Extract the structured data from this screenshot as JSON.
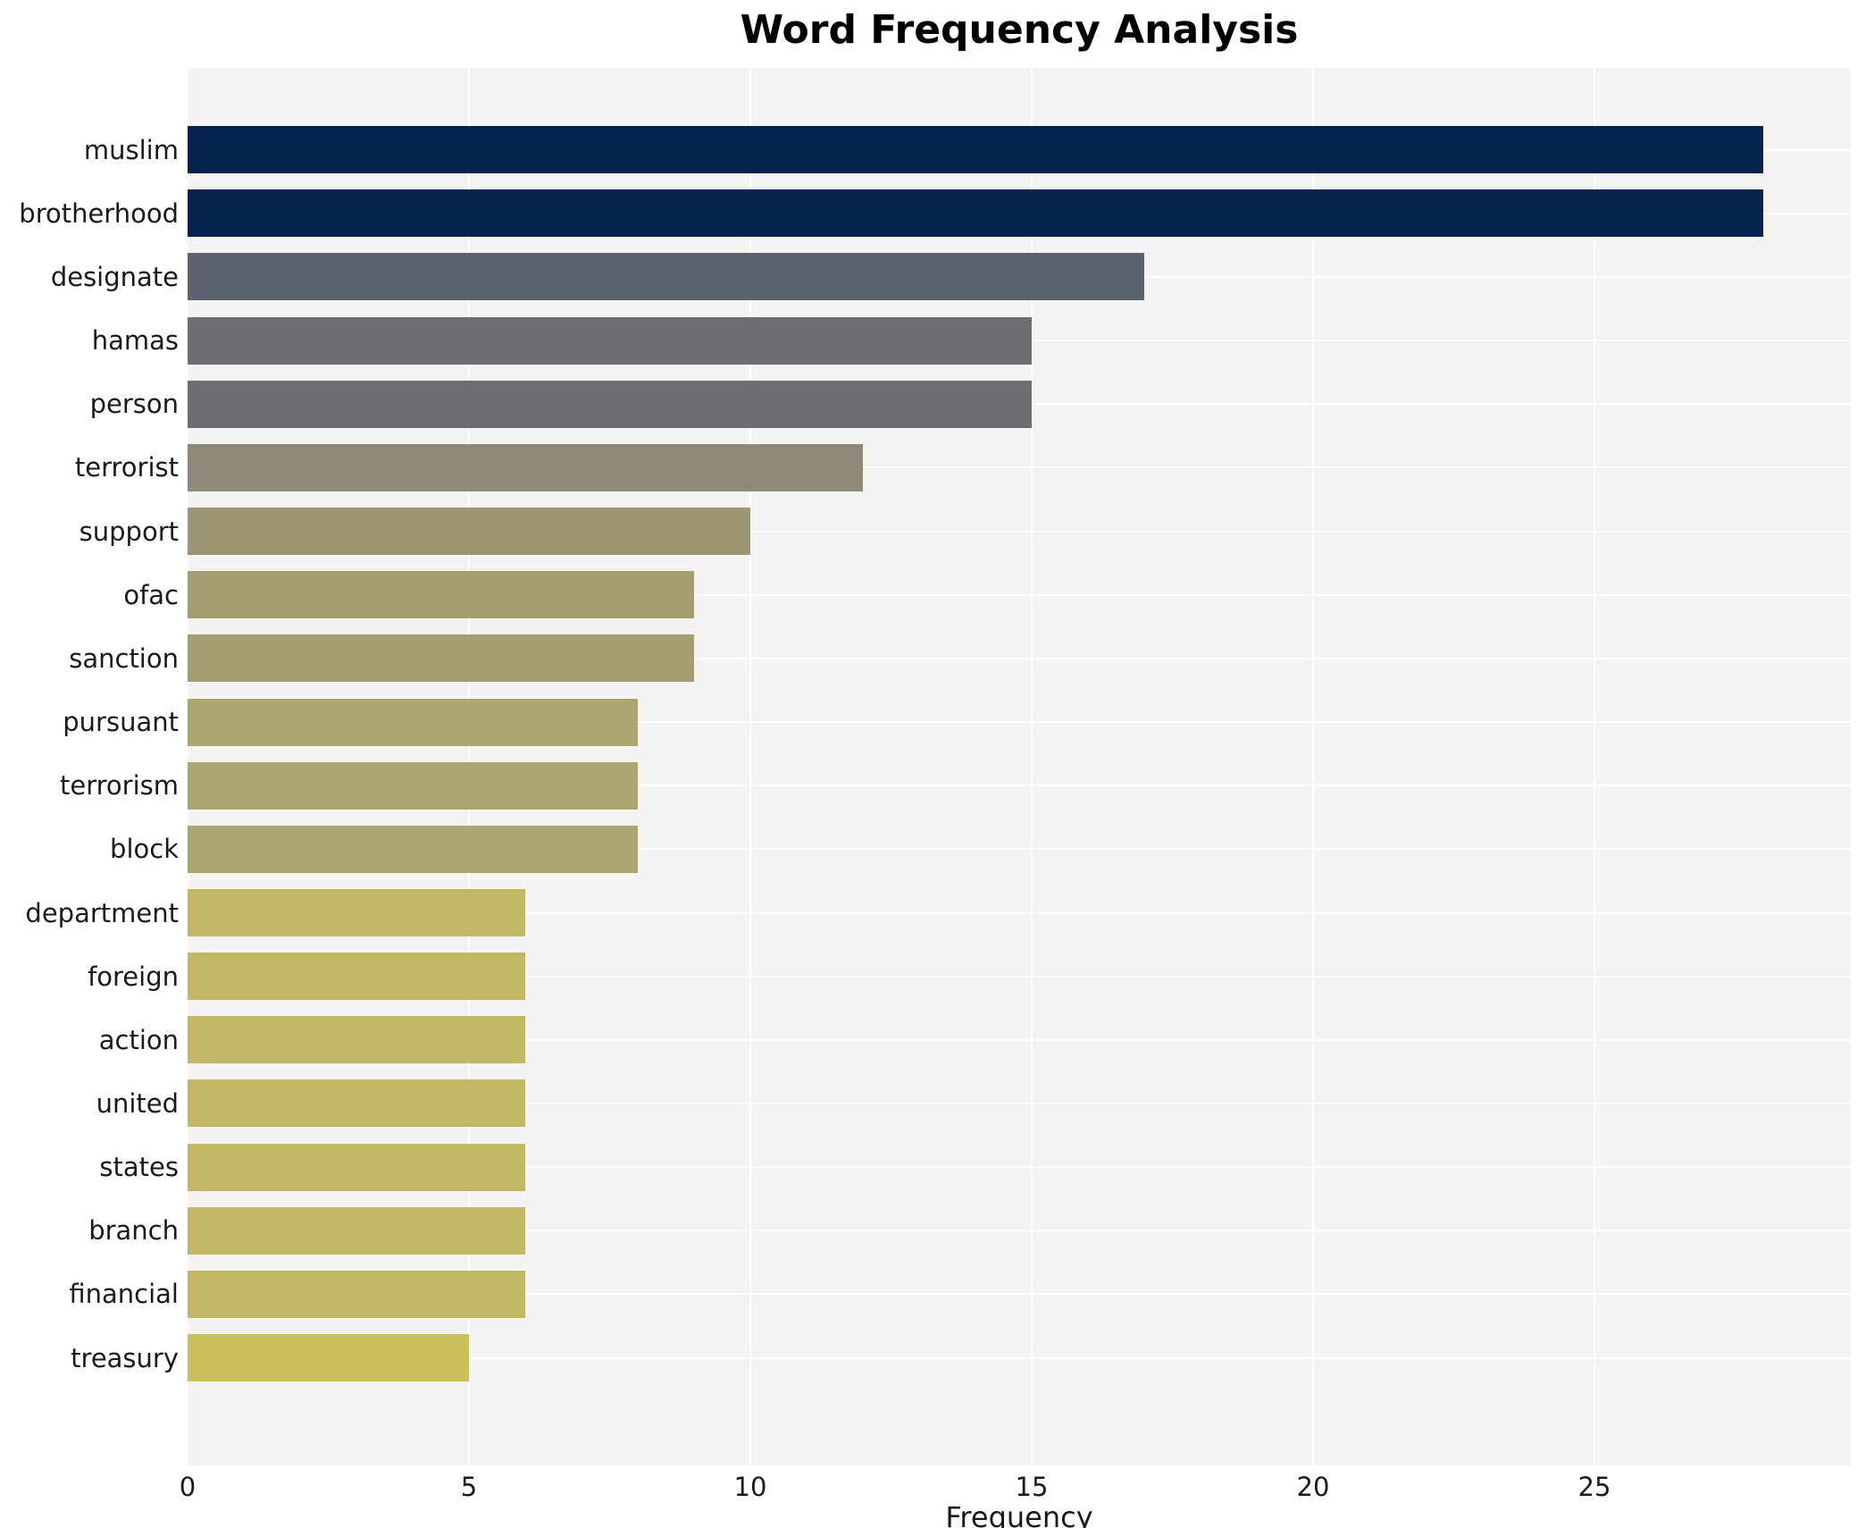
{
  "title": "Word Frequency Analysis",
  "axes": {
    "xlabel": "Frequency",
    "x_ticks": [
      "0",
      "5",
      "10",
      "15",
      "20",
      "25"
    ]
  },
  "chart_data": {
    "type": "bar",
    "orientation": "horizontal",
    "title": "Word Frequency Analysis",
    "xlabel": "Frequency",
    "ylabel": "",
    "xlim": [
      0,
      29.5
    ],
    "grid": true,
    "legend": false,
    "categories": [
      "muslim",
      "brotherhood",
      "designate",
      "hamas",
      "person",
      "terrorist",
      "support",
      "ofac",
      "sanction",
      "pursuant",
      "terrorism",
      "block",
      "department",
      "foreign",
      "action",
      "united",
      "states",
      "branch",
      "financial",
      "treasury"
    ],
    "values": [
      28,
      28,
      17,
      15,
      15,
      12,
      10,
      9,
      9,
      8,
      8,
      8,
      6,
      6,
      6,
      6,
      6,
      6,
      6,
      5
    ],
    "bar_colors": [
      "#062350",
      "#062350",
      "#5c616e",
      "#6d6e71",
      "#6d6e71",
      "#8d8877",
      "#9c9674",
      "#a49d72",
      "#a49d72",
      "#aca56f",
      "#aca56f",
      "#aca56f",
      "#c3b766",
      "#c3b766",
      "#c3b766",
      "#c3b766",
      "#c3b766",
      "#c3b766",
      "#c3b766",
      "#cbbf5c"
    ]
  },
  "style_colors": {
    "plot_background": "#f4f3f1",
    "gridline": "#ffffff",
    "text": "#1a1a1a",
    "page_background": "#ffffff"
  }
}
